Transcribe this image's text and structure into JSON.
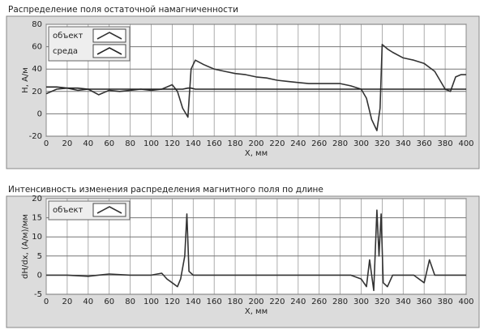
{
  "chart_data": [
    {
      "type": "line",
      "title": "Распределение поля остаточной намагниченности",
      "ylabel": "H, А/м",
      "xlabel": "X, мм",
      "x": [
        0,
        10,
        20,
        30,
        40,
        50,
        60,
        70,
        80,
        90,
        100,
        110,
        120,
        125,
        130,
        135,
        138,
        142,
        150,
        160,
        170,
        180,
        190,
        200,
        210,
        220,
        230,
        240,
        250,
        260,
        270,
        280,
        290,
        300,
        305,
        310,
        315,
        318,
        320,
        325,
        330,
        340,
        350,
        360,
        370,
        380,
        385,
        390,
        395,
        400
      ],
      "series": [
        {
          "name": "объект",
          "color": "#333333",
          "values": [
            18,
            22,
            23,
            21,
            22,
            17,
            21,
            20,
            21,
            22,
            21,
            22,
            26,
            20,
            5,
            -3,
            40,
            48,
            44,
            40,
            38,
            36,
            35,
            33,
            32,
            30,
            29,
            28,
            27,
            27,
            27,
            27,
            25,
            22,
            14,
            -5,
            -15,
            5,
            62,
            58,
            55,
            50,
            48,
            45,
            38,
            22,
            20,
            33,
            35,
            35
          ]
        },
        {
          "name": "среда",
          "color": "#222222",
          "values": [
            24,
            24,
            23,
            23,
            22,
            22,
            22,
            22,
            22,
            22,
            22,
            22,
            22,
            22,
            22,
            23,
            23,
            22,
            22,
            22,
            22,
            22,
            22,
            22,
            22,
            22,
            22,
            22,
            22,
            22,
            22,
            22,
            22,
            22,
            22,
            22,
            22,
            22,
            22,
            22,
            22,
            22,
            22,
            22,
            22,
            22,
            22,
            22,
            22,
            22
          ]
        }
      ],
      "xlim": [
        0,
        400
      ],
      "xticks": [
        0,
        20,
        40,
        60,
        80,
        100,
        120,
        140,
        160,
        180,
        200,
        220,
        240,
        260,
        280,
        300,
        320,
        340,
        360,
        380,
        400
      ],
      "ylim": [
        -20,
        80
      ],
      "yticks": [
        -20,
        0,
        20,
        40,
        60,
        80
      ],
      "grid": true,
      "legend": "top-left"
    },
    {
      "type": "line",
      "title": "Интенсивность изменения распределения магнитного поля по длине",
      "ylabel": "dH/dx, (А/м)/мм",
      "xlabel": "X, мм",
      "x": [
        0,
        20,
        40,
        60,
        80,
        100,
        110,
        115,
        120,
        125,
        128,
        132,
        134,
        136,
        140,
        150,
        200,
        250,
        290,
        300,
        305,
        308,
        312,
        315,
        317,
        319,
        321,
        325,
        330,
        350,
        360,
        365,
        370,
        380,
        400
      ],
      "series": [
        {
          "name": "объект",
          "color": "#333333",
          "values": [
            0,
            0,
            -0.3,
            0.3,
            0,
            0,
            0.5,
            -1,
            -2,
            -3,
            -1,
            5,
            16,
            1,
            0,
            0,
            0,
            0,
            0,
            -1,
            -3,
            4,
            -4,
            17,
            5,
            16,
            -2,
            -3,
            0,
            0,
            -2,
            4,
            0,
            0,
            0
          ]
        }
      ],
      "xlim": [
        0,
        400
      ],
      "xticks": [
        0,
        20,
        40,
        60,
        80,
        100,
        120,
        140,
        160,
        180,
        200,
        220,
        240,
        260,
        280,
        300,
        320,
        340,
        360,
        380,
        400
      ],
      "ylim": [
        -5,
        20
      ],
      "yticks": [
        -5,
        0,
        5,
        10,
        15,
        20
      ],
      "grid": true,
      "legend": "top-left"
    }
  ]
}
